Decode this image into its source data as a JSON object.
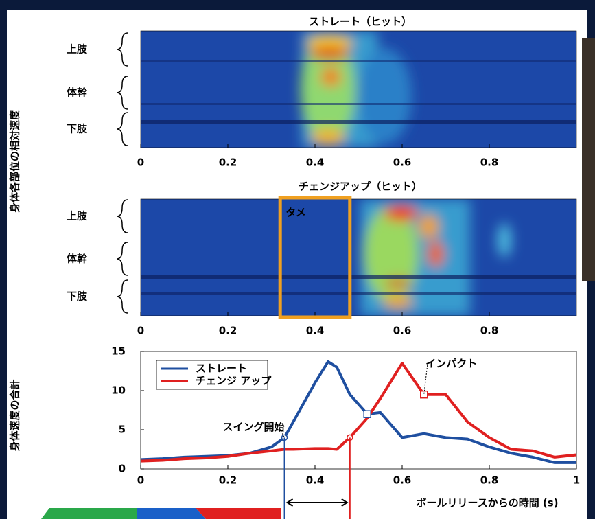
{
  "chart_data": [
    {
      "type": "heatmap",
      "title": "ストレート（ヒット）",
      "ylabel": "身体各部位の相対速度",
      "rows": [
        "上肢",
        "体幹",
        "下肢"
      ],
      "xlim": [
        0,
        1
      ],
      "xticks": [
        0,
        0.2,
        0.4,
        0.6,
        0.8
      ]
    },
    {
      "type": "heatmap",
      "title": "チェンジアップ（ヒット）",
      "rows": [
        "上肢",
        "体幹",
        "下肢"
      ],
      "xlim": [
        0,
        1
      ],
      "xticks": [
        0,
        0.2,
        0.4,
        0.6,
        0.8
      ],
      "annotation": {
        "text": "タメ",
        "x": [
          0.32,
          0.48
        ],
        "color": "#f0a020"
      }
    },
    {
      "type": "line",
      "ylabel": "身体速度の合計",
      "xlabel": "ボールリリースからの時間 (s)",
      "xlim": [
        0,
        1
      ],
      "xticks": [
        0,
        0.2,
        0.4,
        0.6,
        0.8,
        1
      ],
      "ylim": [
        0,
        15
      ],
      "yticks": [
        0,
        5,
        10,
        15
      ],
      "x": [
        0,
        0.05,
        0.1,
        0.15,
        0.2,
        0.25,
        0.3,
        0.33,
        0.35,
        0.4,
        0.43,
        0.45,
        0.48,
        0.52,
        0.55,
        0.6,
        0.65,
        0.7,
        0.75,
        0.8,
        0.85,
        0.9,
        0.95,
        1
      ],
      "series": [
        {
          "name": "ストレート",
          "color": "#1f4fa0",
          "values": [
            1.2,
            1.3,
            1.5,
            1.6,
            1.7,
            2.0,
            2.8,
            4,
            6,
            11,
            13.7,
            13,
            9.5,
            7,
            7.2,
            4,
            4.5,
            4,
            3.8,
            2.8,
            2,
            1.5,
            0.8,
            0.8
          ]
        },
        {
          "name": "チェンジ アップ",
          "color": "#e02020",
          "values": [
            1,
            1.1,
            1.3,
            1.4,
            1.6,
            2,
            2.3,
            2.5,
            2.5,
            2.6,
            2.6,
            2.5,
            4,
            6.5,
            9,
            13.5,
            9.5,
            9.5,
            6,
            4,
            2.5,
            2.3,
            1.5,
            1.8
          ]
        }
      ],
      "markers": [
        {
          "series": 0,
          "index": 7,
          "shape": "circle"
        },
        {
          "series": 0,
          "index": 13,
          "shape": "square"
        },
        {
          "series": 1,
          "index": 12,
          "shape": "circle"
        },
        {
          "series": 1,
          "index": 16,
          "shape": "square"
        }
      ],
      "annotations": [
        {
          "text": "スイング開始",
          "series": 0,
          "index": 7
        },
        {
          "text": "インパクト",
          "series": 1,
          "index": 16
        }
      ]
    }
  ]
}
